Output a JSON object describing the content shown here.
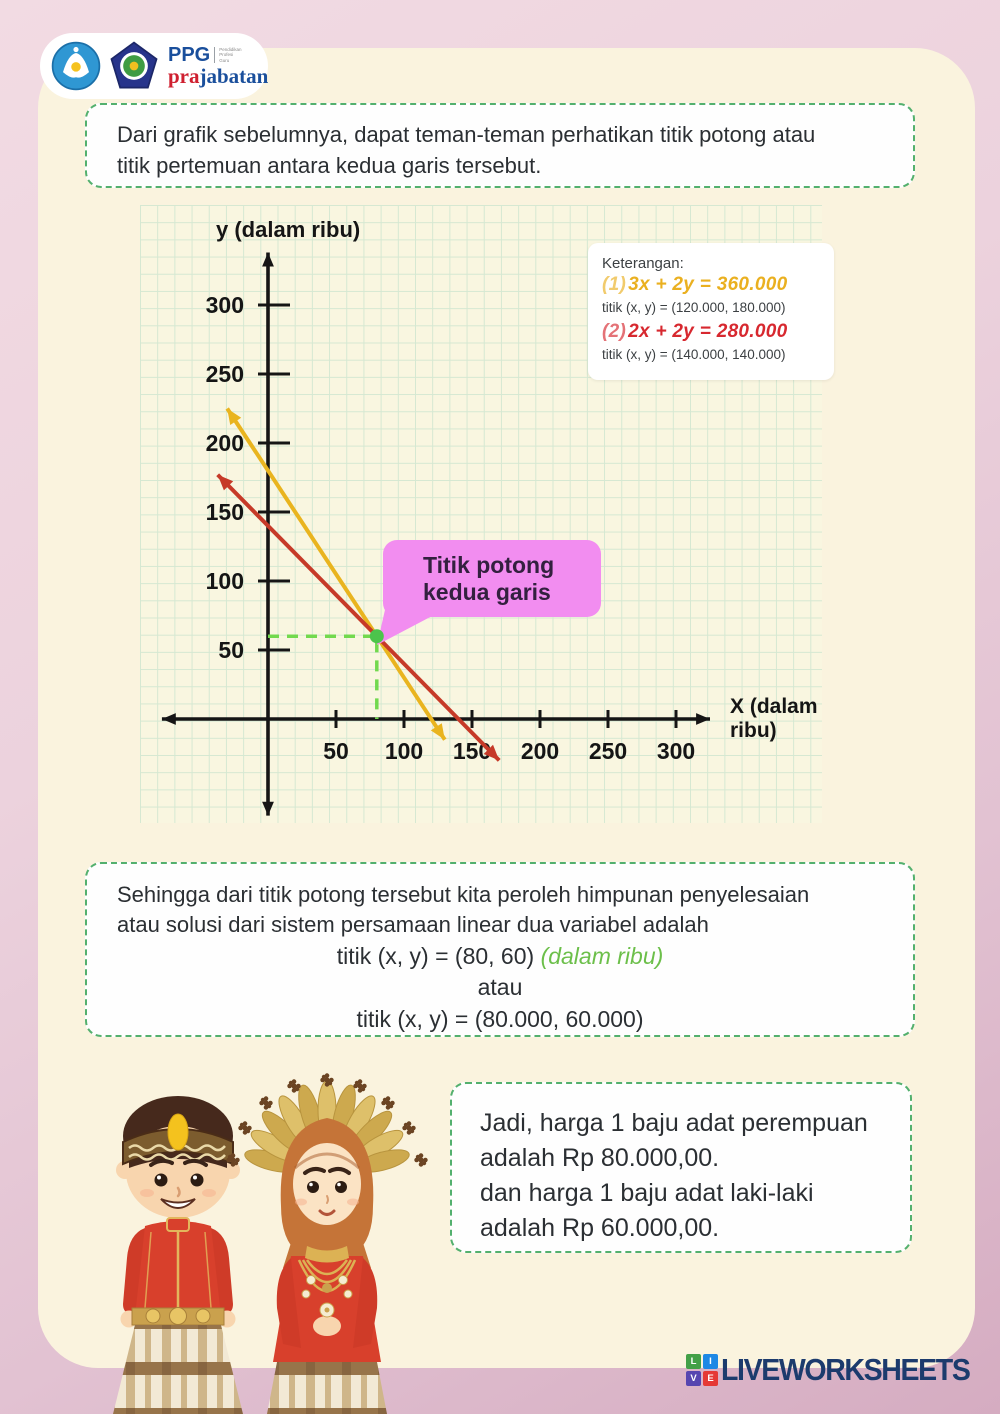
{
  "header": {
    "ppg": "PPG",
    "ppg_sub_lines": [
      "Pendidikan",
      "Profesi",
      "Guru"
    ],
    "pra": "pra",
    "jabatan": "jabatan"
  },
  "intro_box": {
    "line1": "Dari grafik sebelumnya, dapat teman-teman perhatikan titik potong atau",
    "line2": "titik pertemuan antara kedua garis tersebut."
  },
  "chart_data": {
    "type": "line",
    "xlabel": "X (dalam ribu)",
    "xlabel_lines": [
      "X (dalam",
      "ribu)"
    ],
    "ylabel": "y (dalam ribu)",
    "x_ticks": [
      50,
      100,
      150,
      200,
      250,
      300
    ],
    "y_ticks": [
      50,
      100,
      150,
      200,
      250,
      300
    ],
    "xlim": [
      -78,
      325
    ],
    "ylim": [
      -70,
      338
    ],
    "grid": true,
    "series": [
      {
        "name": "3x + 2y = 360.000",
        "color": "#e9b41f",
        "x_intercept": 120,
        "y_intercept": 180,
        "points": [
          [
            -30,
            225
          ],
          [
            130,
            -15
          ]
        ]
      },
      {
        "name": "2x + 2y = 280.000",
        "color": "#c63a28",
        "x_intercept": 140,
        "y_intercept": 140,
        "points": [
          [
            -37,
            177
          ],
          [
            170,
            -30
          ]
        ]
      }
    ],
    "intersection": {
      "x": 80,
      "y": 60,
      "color": "#4cc44c",
      "guide_color": "#72d94e"
    },
    "legend": {
      "title": "Keterangan:",
      "position": "top-right",
      "items": [
        {
          "index": "(1)",
          "equation": "3x + 2y = 360.000",
          "color": "#eab020",
          "point": "titik (x, y) = (120.000, 180.000)"
        },
        {
          "index": "(2)",
          "equation": "2x + 2y = 280.000",
          "color": "#d7282f",
          "point": "titik (x, y) = (140.000, 140.000)"
        }
      ]
    },
    "callout": {
      "line1": "Titik potong",
      "line2": "kedua garis",
      "bg": "#f28df0"
    }
  },
  "result_box": {
    "line1": "Sehingga dari titik potong tersebut kita peroleh himpunan penyelesaian",
    "line2": "atau solusi dari sistem persamaan linear dua variabel adalah",
    "point": "titik (x, y) = (80, 60)",
    "point_note": "(dalam ribu)",
    "atau": "atau",
    "point2": "titik (x, y) = (80.000, 60.000)"
  },
  "conclusion_box": {
    "line1": "Jadi, harga 1 baju adat perempuan",
    "line2": "adalah Rp 80.000,00.",
    "line3": "dan harga 1 baju adat laki-laki",
    "line4": "adalah Rp 60.000,00."
  },
  "footer": {
    "brand": "LIVEWORKSHEETS",
    "squares": [
      {
        "letter": "L",
        "color": "#43a047"
      },
      {
        "letter": "I",
        "color": "#1e88e5"
      },
      {
        "letter": "V",
        "color": "#5646b0"
      },
      {
        "letter": "E",
        "color": "#e53935"
      }
    ]
  }
}
